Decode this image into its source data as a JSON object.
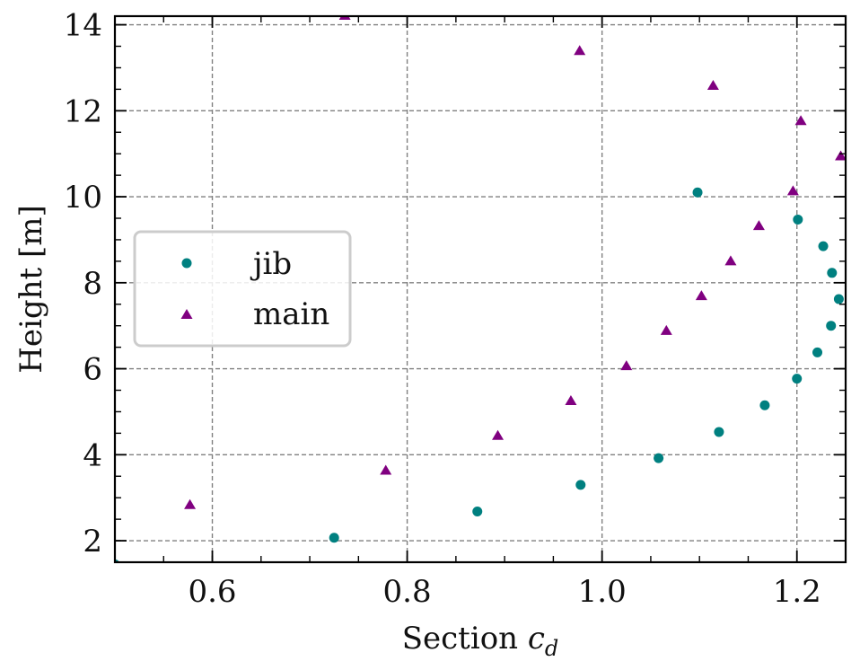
{
  "chart_data": {
    "type": "scatter",
    "xlabel": "Section",
    "xlabel_symbol": "c",
    "xlabel_subscript": "d",
    "ylabel": "Height [m]",
    "xlim": [
      0.5,
      1.25
    ],
    "ylim": [
      1.5,
      14.2
    ],
    "x_ticks": [
      0.6,
      0.8,
      1.0,
      1.2
    ],
    "x_tick_labels": [
      "0.6",
      "0.8",
      "1.0",
      "1.2"
    ],
    "y_ticks": [
      2,
      4,
      6,
      8,
      10,
      12,
      14
    ],
    "y_tick_labels": [
      "2",
      "4",
      "6",
      "8",
      "10",
      "12",
      "14"
    ],
    "grid": true,
    "legend_position": "center-left",
    "series": [
      {
        "name": "jib",
        "marker": "circle",
        "color": "#008080",
        "points": [
          {
            "x": 0.5,
            "y": 1.45
          },
          {
            "x": 0.725,
            "y": 2.07
          },
          {
            "x": 0.872,
            "y": 2.68
          },
          {
            "x": 0.978,
            "y": 3.3
          },
          {
            "x": 1.058,
            "y": 3.92
          },
          {
            "x": 1.12,
            "y": 4.53
          },
          {
            "x": 1.167,
            "y": 5.15
          },
          {
            "x": 1.2,
            "y": 5.77
          },
          {
            "x": 1.221,
            "y": 6.38
          },
          {
            "x": 1.235,
            "y": 7.0
          },
          {
            "x": 1.243,
            "y": 7.62
          },
          {
            "x": 1.236,
            "y": 8.23
          },
          {
            "x": 1.227,
            "y": 8.85
          },
          {
            "x": 1.201,
            "y": 9.47
          },
          {
            "x": 1.098,
            "y": 10.1
          }
        ]
      },
      {
        "name": "main",
        "marker": "triangle",
        "color": "#800080",
        "points": [
          {
            "x": 0.577,
            "y": 2.82
          },
          {
            "x": 0.778,
            "y": 3.62
          },
          {
            "x": 0.893,
            "y": 4.43
          },
          {
            "x": 0.968,
            "y": 5.24
          },
          {
            "x": 1.025,
            "y": 6.05
          },
          {
            "x": 1.066,
            "y": 6.87
          },
          {
            "x": 1.102,
            "y": 7.68
          },
          {
            "x": 1.132,
            "y": 8.49
          },
          {
            "x": 1.161,
            "y": 9.31
          },
          {
            "x": 1.196,
            "y": 10.12
          },
          {
            "x": 1.245,
            "y": 10.93
          },
          {
            "x": 1.204,
            "y": 11.75
          },
          {
            "x": 1.114,
            "y": 12.57
          },
          {
            "x": 0.977,
            "y": 13.38
          },
          {
            "x": 0.736,
            "y": 14.2
          }
        ]
      }
    ]
  }
}
